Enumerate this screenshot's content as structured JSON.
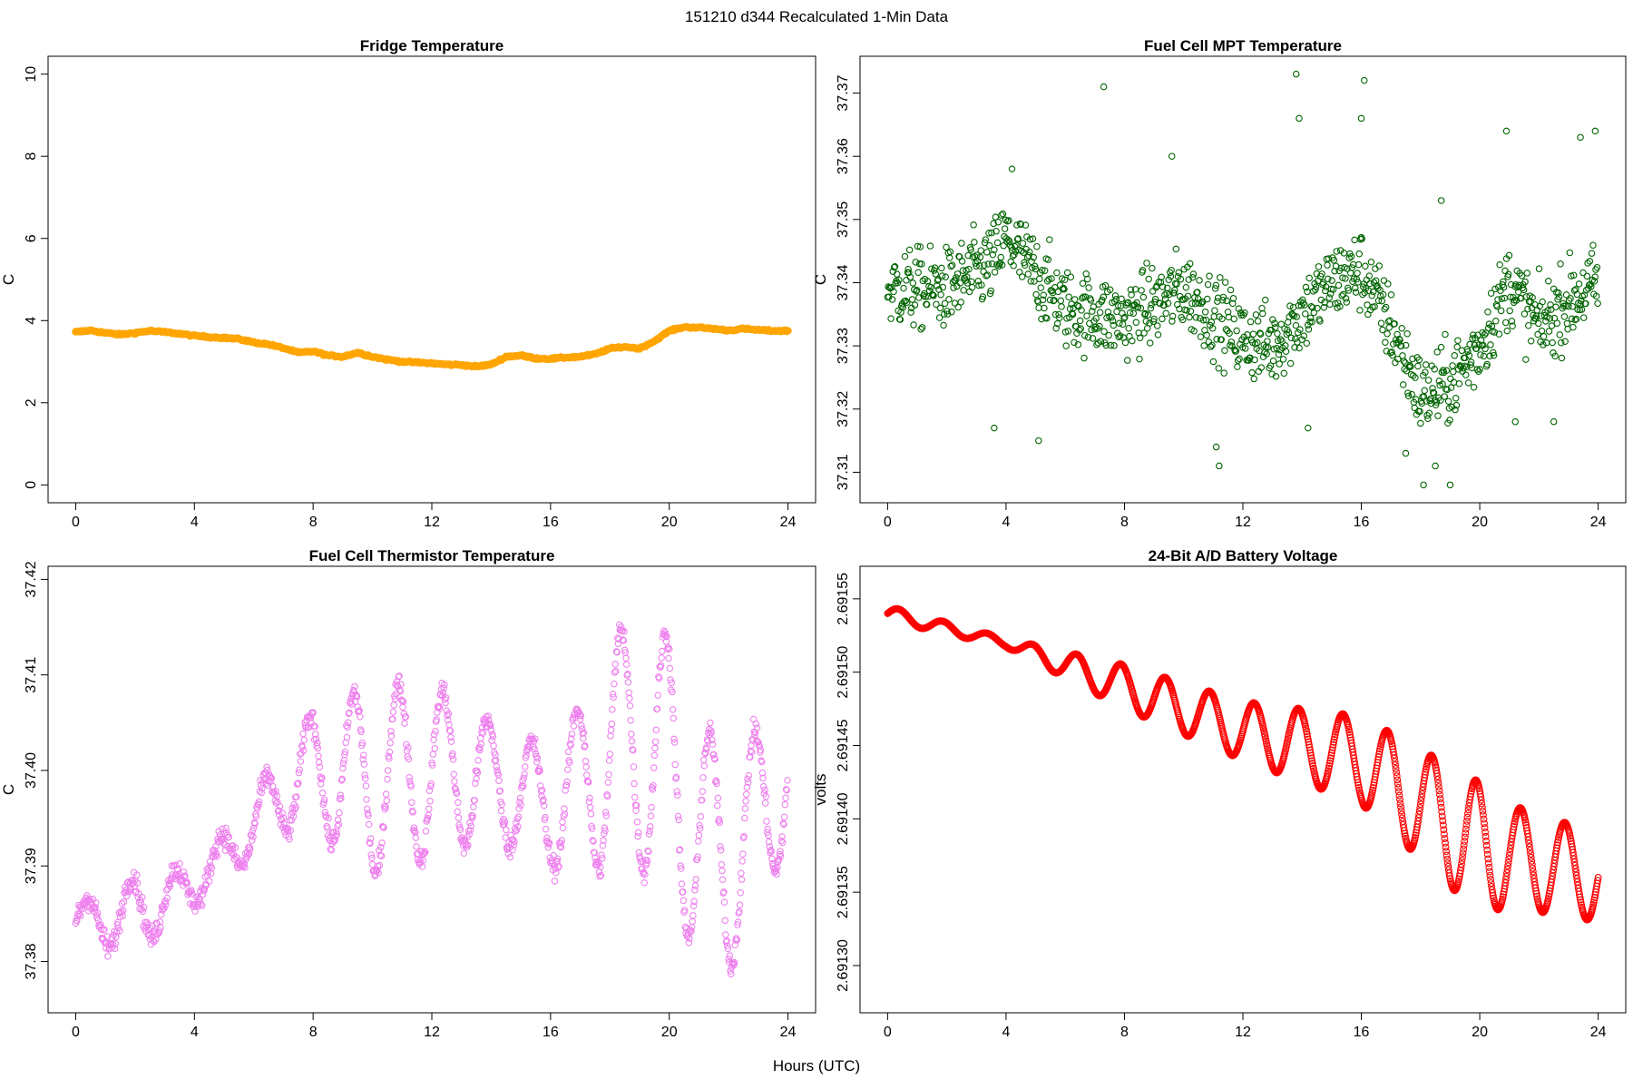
{
  "figure": {
    "title": "151210   d344   Recalculated 1-Min Data",
    "xlabel": "Hours (UTC)"
  },
  "chart_data": [
    {
      "type": "scatter",
      "title": "Fridge Temperature",
      "ylabel": "C",
      "xlim": [
        0,
        24
      ],
      "ylim": [
        0,
        10
      ],
      "xticks": [
        0,
        4,
        8,
        12,
        16,
        20,
        24
      ],
      "yticks": [
        0,
        2,
        4,
        6,
        8,
        10
      ],
      "ytick_labels": [
        "0",
        "2",
        "4",
        "6",
        "8",
        "10"
      ],
      "color": "#FFA500",
      "marker": "filled-dense",
      "x": [
        0,
        0.5,
        1,
        1.5,
        2,
        2.5,
        3,
        3.5,
        4,
        4.5,
        5,
        5.5,
        6,
        6.5,
        7,
        7.5,
        8,
        8.5,
        9,
        9.5,
        10,
        10.5,
        11,
        11.5,
        12,
        12.5,
        13,
        13.5,
        14,
        14.5,
        15,
        15.5,
        16,
        16.5,
        17,
        17.5,
        18,
        18.5,
        19,
        19.5,
        20,
        20.5,
        21,
        21.5,
        22,
        22.5,
        23,
        23.5,
        24
      ],
      "y": [
        3.72,
        3.76,
        3.7,
        3.66,
        3.7,
        3.75,
        3.72,
        3.68,
        3.63,
        3.6,
        3.58,
        3.55,
        3.47,
        3.42,
        3.33,
        3.22,
        3.25,
        3.15,
        3.12,
        3.22,
        3.12,
        3.05,
        3.0,
        2.98,
        2.96,
        2.93,
        2.92,
        2.88,
        2.93,
        3.12,
        3.15,
        3.08,
        3.07,
        3.1,
        3.12,
        3.18,
        3.32,
        3.36,
        3.32,
        3.5,
        3.75,
        3.84,
        3.83,
        3.8,
        3.76,
        3.8,
        3.77,
        3.75,
        3.75
      ]
    },
    {
      "type": "scatter",
      "title": "Fuel Cell MPT Temperature",
      "ylabel": "C",
      "xlim": [
        0,
        24
      ],
      "ylim": [
        37.308,
        37.373
      ],
      "xticks": [
        0,
        4,
        8,
        12,
        16,
        20,
        24
      ],
      "yticks": [
        37.31,
        37.32,
        37.33,
        37.34,
        37.35,
        37.36,
        37.37
      ],
      "ytick_labels": [
        "37.31",
        "37.32",
        "37.33",
        "37.34",
        "37.35",
        "37.36",
        "37.37"
      ],
      "color": "#006400",
      "marker": "open-circle",
      "trend": {
        "x": [
          0,
          2,
          3.5,
          4,
          6,
          8,
          10,
          11,
          12,
          13,
          14,
          15,
          16,
          17,
          18,
          19,
          20,
          21,
          22,
          23,
          24
        ],
        "y": [
          37.339,
          37.339,
          37.343,
          37.347,
          37.336,
          37.334,
          37.339,
          37.335,
          37.331,
          37.33,
          37.335,
          37.34,
          37.342,
          37.333,
          37.322,
          37.324,
          37.33,
          37.34,
          37.333,
          37.337,
          37.34
        ]
      },
      "spread": 0.0065,
      "outliers": [
        [
          3.6,
          37.317
        ],
        [
          4.2,
          37.358
        ],
        [
          5.1,
          37.315
        ],
        [
          7.3,
          37.371
        ],
        [
          9.6,
          37.36
        ],
        [
          11.1,
          37.314
        ],
        [
          11.2,
          37.311
        ],
        [
          13.8,
          37.373
        ],
        [
          13.9,
          37.366
        ],
        [
          14.2,
          37.317
        ],
        [
          16.1,
          37.372
        ],
        [
          16.0,
          37.366
        ],
        [
          17.5,
          37.313
        ],
        [
          18.1,
          37.308
        ],
        [
          18.5,
          37.311
        ],
        [
          18.7,
          37.353
        ],
        [
          19.0,
          37.308
        ],
        [
          20.9,
          37.364
        ],
        [
          21.2,
          37.318
        ],
        [
          22.5,
          37.318
        ],
        [
          23.4,
          37.363
        ],
        [
          23.9,
          37.364
        ]
      ]
    },
    {
      "type": "scatter",
      "title": "Fuel Cell Thermistor Temperature",
      "ylabel": "C",
      "xlim": [
        0,
        24
      ],
      "ylim": [
        37.3765,
        37.4195
      ],
      "xticks": [
        0,
        4,
        8,
        12,
        16,
        20,
        24
      ],
      "yticks": [
        37.38,
        37.39,
        37.4,
        37.41,
        37.42
      ],
      "ytick_labels": [
        "37.38",
        "37.39",
        "37.40",
        "37.41",
        "37.42"
      ],
      "color": "#EE82EE",
      "marker": "open-circle",
      "trend": {
        "x": [
          0,
          2,
          4,
          6,
          7,
          8,
          10,
          12,
          14,
          16,
          17,
          18,
          19,
          20,
          21,
          22,
          23,
          24
        ],
        "y": [
          37.384,
          37.385,
          37.388,
          37.394,
          37.398,
          37.4,
          37.399,
          37.4,
          37.399,
          37.396,
          37.398,
          37.402,
          37.403,
          37.4,
          37.393,
          37.39,
          37.395,
          37.4
        ]
      },
      "oscillation": {
        "period_hours": 1.5,
        "amplitude_knots": {
          "x": [
            0,
            2,
            4,
            6,
            8,
            10,
            12,
            14,
            16,
            18,
            20,
            22,
            24
          ],
          "y": [
            0.002,
            0.004,
            0.002,
            0.003,
            0.006,
            0.01,
            0.009,
            0.006,
            0.006,
            0.012,
            0.014,
            0.011,
            0.008
          ]
        }
      }
    },
    {
      "type": "line",
      "title": "24-Bit A/D Battery Voltage",
      "ylabel": "volts",
      "xlim": [
        0,
        24
      ],
      "ylim": [
        2.69128,
        2.69156
      ],
      "xticks": [
        0,
        4,
        8,
        12,
        16,
        20,
        24
      ],
      "yticks": [
        2.6913,
        2.69135,
        2.6914,
        2.69145,
        2.6915,
        2.69155
      ],
      "ytick_labels": [
        "2.69130",
        "2.69135",
        "2.69140",
        "2.69145",
        "2.69150",
        "2.69155"
      ],
      "color": "#FF0000",
      "marker": "open-circle-dense",
      "trend": {
        "x": [
          0,
          4,
          8,
          12,
          16,
          20,
          24
        ],
        "y": [
          2.69154,
          2.69152,
          2.69149,
          2.69146,
          2.69144,
          2.69138,
          2.69136
        ]
      },
      "oscillation": {
        "period_hours": 1.5,
        "amplitude_knots": {
          "x": [
            0,
            4,
            8,
            12,
            16,
            20,
            21,
            24
          ],
          "y": [
            5e-06,
            3e-06,
            1.5e-05,
            2e-05,
            3e-05,
            4.5e-05,
            3.5e-05,
            3e-05
          ]
        }
      }
    }
  ]
}
